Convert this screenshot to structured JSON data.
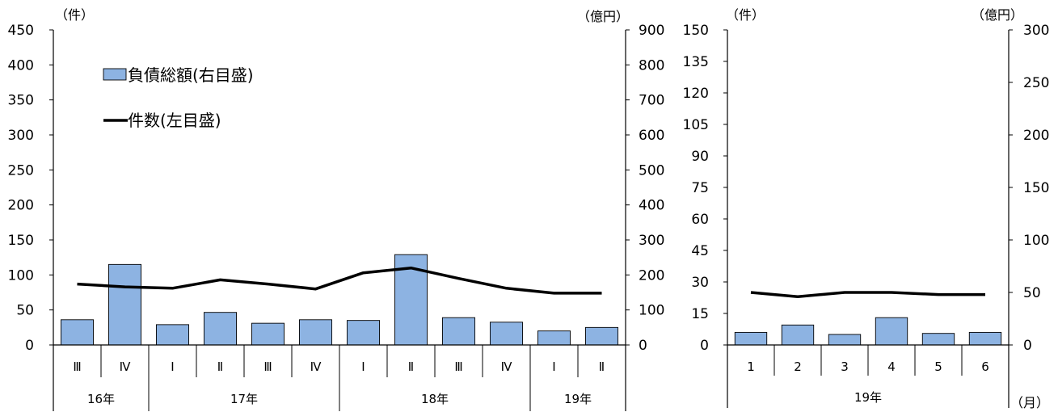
{
  "chart_data": [
    {
      "type": "bar+line",
      "left_unit": "（件）",
      "right_unit": "（億円）",
      "y_left_ticks": [
        0,
        50,
        100,
        150,
        200,
        250,
        300,
        350,
        400,
        450
      ],
      "y_right_ticks": [
        0,
        100,
        200,
        300,
        400,
        500,
        600,
        700,
        800,
        900
      ],
      "ylim_left": [
        0,
        450
      ],
      "ylim_right": [
        0,
        900
      ],
      "categories": [
        "Ⅲ",
        "Ⅳ",
        "Ⅰ",
        "Ⅱ",
        "Ⅲ",
        "Ⅳ",
        "Ⅰ",
        "Ⅱ",
        "Ⅲ",
        "Ⅳ",
        "Ⅰ",
        "Ⅱ"
      ],
      "groups": [
        {
          "label": "16年",
          "count": 2
        },
        {
          "label": "17年",
          "count": 4
        },
        {
          "label": "18年",
          "count": 4
        },
        {
          "label": "19年",
          "count": 2
        }
      ],
      "series": [
        {
          "name": "負債総額(右目盛)",
          "kind": "bar",
          "axis": "right",
          "color": "#8db3e2",
          "values": [
            72,
            230,
            58,
            93,
            62,
            72,
            70,
            258,
            78,
            65,
            40,
            50
          ]
        },
        {
          "name": "件数(左目盛)",
          "kind": "line",
          "axis": "left",
          "color": "#000000",
          "values": [
            87,
            83,
            81,
            93,
            87,
            80,
            103,
            110,
            95,
            81,
            74,
            74
          ]
        }
      ],
      "legend": [
        {
          "label": "負債総額(右目盛)",
          "kind": "bar"
        },
        {
          "label": "件数(左目盛)",
          "kind": "line"
        }
      ]
    },
    {
      "type": "bar+line",
      "left_unit": "（件）",
      "right_unit": "（億円）",
      "month_unit": "（月）",
      "y_left_ticks": [
        0,
        15,
        30,
        45,
        60,
        75,
        90,
        105,
        120,
        135,
        150
      ],
      "y_right_ticks": [
        0,
        50,
        100,
        150,
        200,
        250,
        300
      ],
      "ylim_left": [
        0,
        150
      ],
      "ylim_right": [
        0,
        300
      ],
      "categories": [
        "1",
        "2",
        "3",
        "4",
        "5",
        "6"
      ],
      "groups": [
        {
          "label": "19年",
          "count": 6
        }
      ],
      "series": [
        {
          "name": "負債総額",
          "kind": "bar",
          "axis": "right",
          "color": "#8db3e2",
          "values": [
            12,
            19,
            10,
            26,
            11,
            12
          ]
        },
        {
          "name": "件数",
          "kind": "line",
          "axis": "left",
          "color": "#000000",
          "values": [
            25,
            23,
            25,
            25,
            24,
            24
          ]
        }
      ]
    }
  ]
}
